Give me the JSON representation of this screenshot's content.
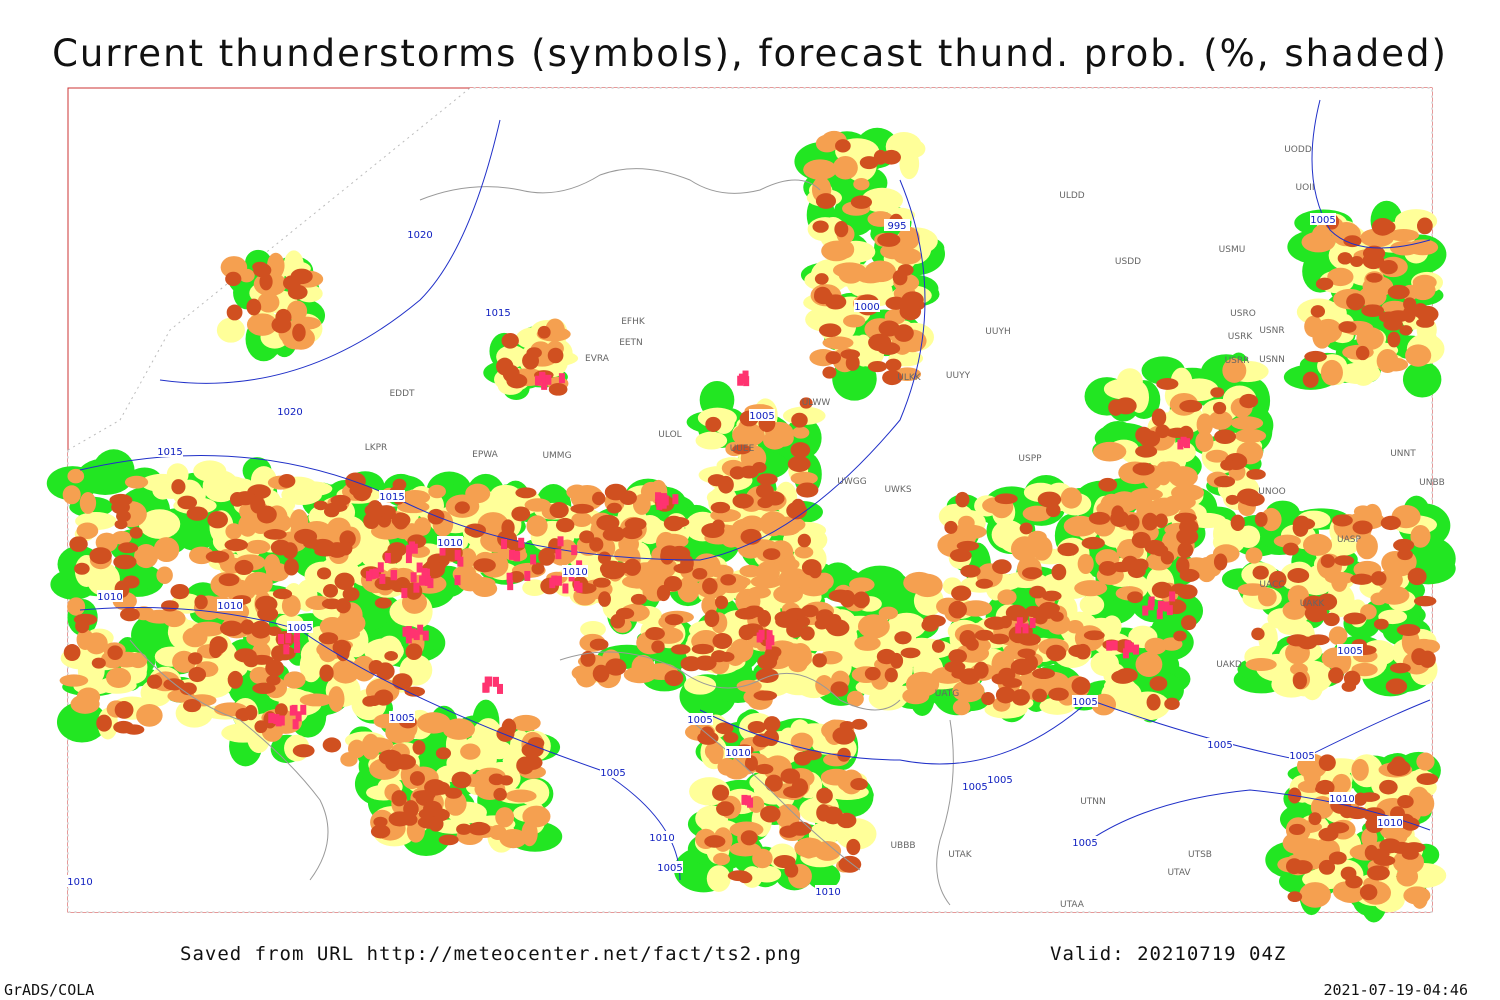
{
  "header": {
    "title": "Current thunderstorms (symbols), forecast thund. prob. (%, shaded)"
  },
  "footer": {
    "source": "Saved from URL http://meteocenter.net/fact/ts2.png",
    "valid": "Valid: 20210719 04Z",
    "software": "GrADS/COLA",
    "timestamp": "2021-07-19-04:46"
  },
  "isobar_labels": [
    "1020",
    "1015",
    "1020",
    "1015",
    "1015",
    "1010",
    "1010",
    "1010",
    "1010",
    "1005",
    "1005",
    "1005",
    "1010",
    "1005",
    "1010",
    "1010",
    "995",
    "1000",
    "1005",
    "1005",
    "1010",
    "1005",
    "1005",
    "1005",
    "1005",
    "1005",
    "1005",
    "1005",
    "1010",
    "1010",
    "1005"
  ],
  "stations": [
    "ULDD",
    "USDD",
    "USMU",
    "USRO",
    "USRK",
    "USNR",
    "USRR",
    "USNN",
    "UUYH",
    "ULKK",
    "UUYY",
    "ULWW",
    "UNNT",
    "UNOO",
    "UNBB",
    "UASP",
    "UACC",
    "UAKK",
    "UAKD",
    "UATG",
    "UTNN",
    "UBBB",
    "UTAK",
    "UTSB",
    "UTAV",
    "UTAA",
    "EFHK",
    "EETN",
    "EVRA",
    "ULOL",
    "EPWA",
    "UMMG",
    "EDDT",
    "LKPR",
    "UODD",
    "UOII",
    "UWGG",
    "UWKS",
    "USPP",
    "UUEE"
  ]
}
